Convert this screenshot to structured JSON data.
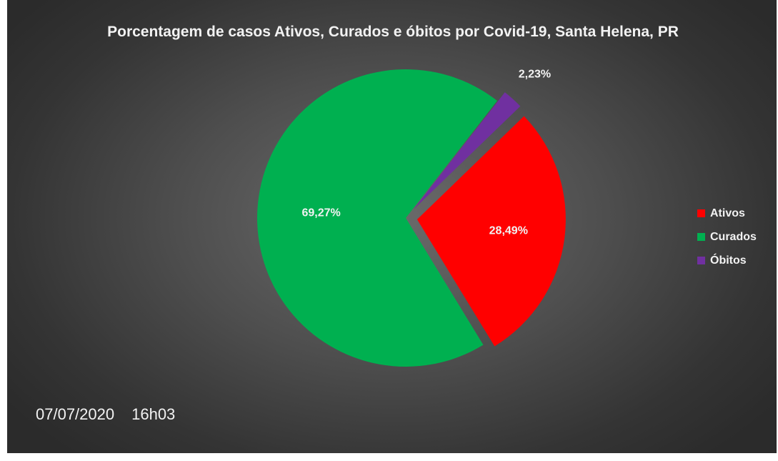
{
  "chart_data": {
    "type": "pie",
    "title": "Porcentagem de casos Ativos, Curados e óbitos por Covid-19, Santa Helena, PR",
    "slices": [
      {
        "label": "Ativos",
        "value": 28.49,
        "display": "28,49%",
        "color": "#ff0000",
        "exploded": true
      },
      {
        "label": "Curados",
        "value": 69.27,
        "display": "69,27%",
        "color": "#00b050",
        "exploded": false
      },
      {
        "label": "Óbitos",
        "value": 2.23,
        "display": "2,23%",
        "color": "#7030a0",
        "exploded": true
      }
    ],
    "legend_position": "right"
  },
  "footer": {
    "date": "07/07/2020",
    "time": "16h03"
  }
}
